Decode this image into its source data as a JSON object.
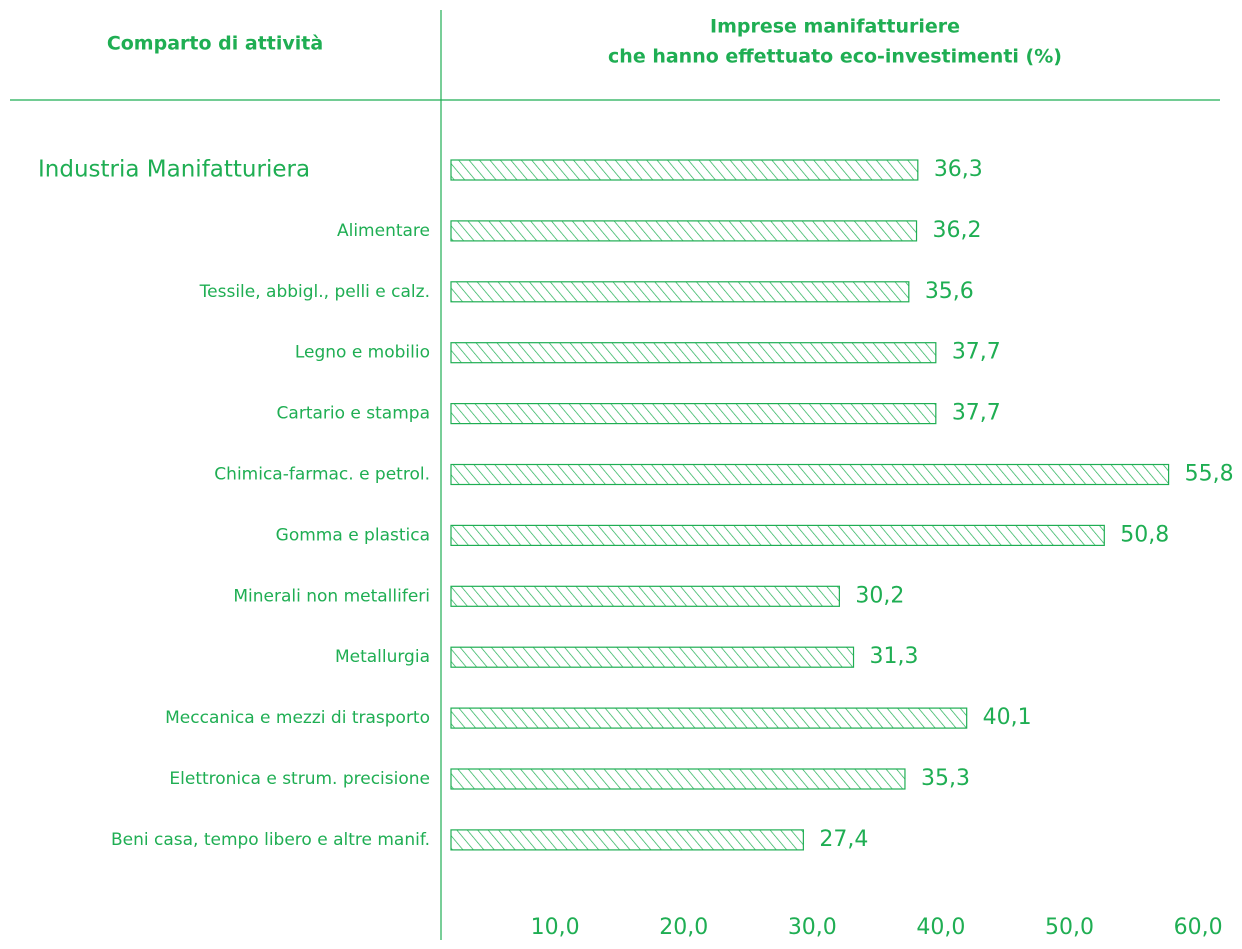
{
  "chart_data": {
    "type": "barh",
    "title": [
      "Imprese manifatturiere",
      "che hanno effettuato eco-investimenti (%)"
    ],
    "category_header": "Comparto di attività",
    "categories": [
      "Industria Manifatturiera",
      "Alimentare",
      "Tessile, abbigl., pelli e calz.",
      "Legno e mobilio",
      "Cartario e stampa",
      "Chimica-farmac. e petrol.",
      "Gomma e plastica",
      "Minerali non metalliferi",
      "Metallurgia",
      "Meccanica e mezzi di trasporto",
      "Elettronica e strum. precisione",
      "Beni casa, tempo libero e altre manif."
    ],
    "values": [
      36.3,
      36.2,
      35.6,
      37.7,
      37.7,
      55.8,
      50.8,
      30.2,
      31.3,
      40.1,
      35.3,
      27.4
    ],
    "value_labels": [
      "36,3",
      "36,2",
      "35,6",
      "37,7",
      "37,7",
      "55,8",
      "50,8",
      "30,2",
      "31,3",
      "40,1",
      "35,3",
      "27,4"
    ],
    "color": "#1fae53",
    "xlim": [
      0,
      60
    ],
    "xticks": [
      {
        "value": 10,
        "label": "10,0"
      },
      {
        "value": 20,
        "label": "20,0"
      },
      {
        "value": 30,
        "label": "30,0"
      },
      {
        "value": 40,
        "label": "40,0"
      },
      {
        "value": 50,
        "label": "50,0"
      },
      {
        "value": 60,
        "label": "60,0"
      }
    ],
    "grid": false
  }
}
